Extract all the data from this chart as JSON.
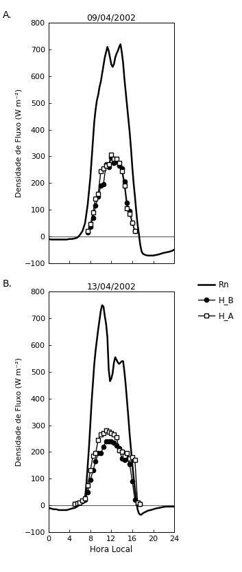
{
  "title_A": "09/04/2002",
  "title_B": "13/04/2002",
  "xlabel": "Hora Local",
  "ylabel": "Densidade de Fluxo (W m⁻²)",
  "label_A": "A.",
  "label_B": "B.",
  "ylim": [
    -100,
    800
  ],
  "xlim": [
    0,
    24
  ],
  "xticks": [
    0,
    4,
    8,
    12,
    16,
    20,
    24
  ],
  "yticks": [
    -100,
    0,
    100,
    200,
    300,
    400,
    500,
    600,
    700,
    800
  ],
  "legend_labels": [
    "Rn",
    "H_B",
    "H_A"
  ],
  "line_color": "#000000",
  "background_color": "#ffffff",
  "Rn_A_x": [
    0.0,
    0.5,
    1.0,
    1.5,
    2.0,
    2.5,
    3.0,
    3.5,
    4.0,
    4.5,
    5.0,
    5.5,
    6.0,
    6.5,
    7.0,
    7.5,
    8.0,
    8.25,
    8.5,
    8.75,
    9.0,
    9.25,
    9.5,
    9.75,
    10.0,
    10.25,
    10.5,
    10.75,
    11.0,
    11.25,
    11.5,
    11.75,
    12.0,
    12.25,
    12.5,
    12.75,
    13.0,
    13.25,
    13.5,
    13.75,
    14.0,
    14.25,
    14.5,
    14.75,
    15.0,
    15.25,
    15.5,
    15.75,
    16.0,
    16.25,
    16.5,
    16.75,
    17.0,
    17.25,
    17.5,
    17.75,
    18.0,
    18.5,
    19.0,
    19.5,
    20.0,
    20.5,
    21.0,
    21.5,
    22.0,
    22.5,
    23.0,
    23.5,
    24.0
  ],
  "Rn_A_y": [
    -10,
    -12,
    -12,
    -12,
    -12,
    -12,
    -12,
    -12,
    -10,
    -10,
    -8,
    -5,
    5,
    20,
    50,
    120,
    220,
    290,
    360,
    430,
    475,
    510,
    530,
    560,
    580,
    610,
    640,
    670,
    690,
    710,
    695,
    670,
    645,
    635,
    645,
    670,
    685,
    695,
    710,
    720,
    690,
    650,
    590,
    540,
    490,
    440,
    390,
    330,
    260,
    200,
    150,
    95,
    45,
    10,
    -30,
    -55,
    -65,
    -70,
    -72,
    -72,
    -72,
    -70,
    -68,
    -65,
    -62,
    -60,
    -58,
    -55,
    -50
  ],
  "HB_A_x": [
    7.5,
    8.0,
    8.5,
    9.0,
    9.5,
    10.0,
    10.5,
    11.0,
    11.5,
    12.0,
    12.5,
    13.0,
    13.5,
    14.0,
    14.5,
    15.0,
    15.5,
    16.0,
    16.5
  ],
  "HB_A_y": [
    15,
    35,
    70,
    115,
    150,
    190,
    195,
    270,
    260,
    295,
    275,
    280,
    265,
    255,
    205,
    125,
    95,
    50,
    20
  ],
  "HA_A_x": [
    7.5,
    8.0,
    8.5,
    9.0,
    9.5,
    10.0,
    10.5,
    11.0,
    11.5,
    12.0,
    12.5,
    13.0,
    13.5,
    14.0,
    14.5,
    15.0,
    15.5,
    16.0,
    16.5
  ],
  "HA_A_y": [
    20,
    45,
    90,
    140,
    160,
    245,
    255,
    265,
    270,
    305,
    290,
    290,
    275,
    245,
    190,
    105,
    85,
    50,
    20
  ],
  "Rn_B_x": [
    0.0,
    0.5,
    1.0,
    1.5,
    2.0,
    2.5,
    3.0,
    3.5,
    4.0,
    4.5,
    5.0,
    5.5,
    6.0,
    6.5,
    7.0,
    7.25,
    7.5,
    7.75,
    8.0,
    8.25,
    8.5,
    8.75,
    9.0,
    9.25,
    9.5,
    9.75,
    10.0,
    10.25,
    10.5,
    10.75,
    11.0,
    11.25,
    11.5,
    11.75,
    12.0,
    12.25,
    12.5,
    12.75,
    13.0,
    13.25,
    13.5,
    13.75,
    14.0,
    14.25,
    14.5,
    14.75,
    15.0,
    15.25,
    15.5,
    15.75,
    16.0,
    16.25,
    16.5,
    16.75,
    17.0,
    17.25,
    17.5,
    17.75,
    18.0,
    18.5,
    19.0,
    19.5,
    20.0,
    20.5,
    21.0,
    21.5,
    22.0,
    22.5,
    23.0,
    23.5,
    24.0
  ],
  "Rn_B_y": [
    -10,
    -12,
    -15,
    -15,
    -18,
    -18,
    -18,
    -18,
    -15,
    -12,
    -10,
    -5,
    5,
    15,
    30,
    80,
    150,
    220,
    305,
    390,
    460,
    530,
    580,
    620,
    660,
    695,
    730,
    750,
    745,
    710,
    680,
    630,
    510,
    465,
    475,
    495,
    535,
    555,
    545,
    535,
    530,
    535,
    540,
    540,
    500,
    450,
    390,
    330,
    265,
    210,
    155,
    105,
    60,
    20,
    -15,
    -30,
    -35,
    -35,
    -30,
    -25,
    -20,
    -18,
    -15,
    -12,
    -10,
    -8,
    -6,
    -5,
    -5,
    -5,
    -5
  ],
  "HB_B_x": [
    5.0,
    5.5,
    6.0,
    6.5,
    7.0,
    7.5,
    8.0,
    8.5,
    9.0,
    9.5,
    10.0,
    10.5,
    11.0,
    11.5,
    12.0,
    12.5,
    13.0,
    13.5,
    14.0,
    14.5,
    15.0,
    15.5,
    16.0,
    16.5,
    17.0,
    17.5
  ],
  "HB_B_y": [
    5,
    8,
    10,
    15,
    20,
    50,
    95,
    130,
    165,
    195,
    195,
    220,
    240,
    240,
    240,
    235,
    225,
    215,
    175,
    170,
    175,
    155,
    90,
    20,
    5,
    5
  ],
  "HA_B_x": [
    5.0,
    5.5,
    6.0,
    6.5,
    7.0,
    7.5,
    8.0,
    8.5,
    9.0,
    9.5,
    10.0,
    10.5,
    11.0,
    11.5,
    12.0,
    12.5,
    13.0,
    13.5,
    14.0,
    14.5,
    15.0,
    15.5,
    16.0,
    16.5,
    17.0,
    17.5
  ],
  "HA_B_y": [
    5,
    8,
    10,
    18,
    25,
    75,
    130,
    185,
    195,
    245,
    265,
    270,
    280,
    275,
    270,
    265,
    255,
    205,
    200,
    185,
    195,
    175,
    180,
    170,
    10,
    5
  ]
}
